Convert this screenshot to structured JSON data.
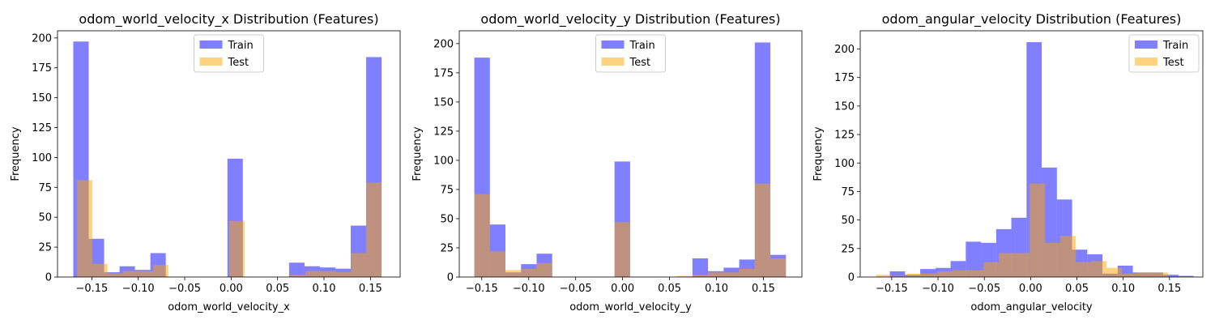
{
  "colors": {
    "train": "#0000ff",
    "test": "#ffa500",
    "train_alpha": 0.5,
    "test_alpha": 0.5
  },
  "chart_data": [
    {
      "type": "bar",
      "title": "odom_world_velocity_x Distribution (Features)",
      "xlabel": "odom_world_velocity_x",
      "ylabel": "Frequency",
      "xlim": [
        -0.187,
        0.182
      ],
      "ylim": [
        0,
        206
      ],
      "xticks": [
        -0.15,
        -0.1,
        -0.05,
        0.0,
        0.05,
        0.1,
        0.15
      ],
      "xtick_labels": [
        "−0.15",
        "−0.10",
        "−0.05",
        "0.00",
        "0.05",
        "0.10",
        "0.15"
      ],
      "yticks": [
        0,
        25,
        50,
        75,
        100,
        125,
        150,
        175,
        200
      ],
      "ytick_labels": [
        "0",
        "25",
        "50",
        "75",
        "100",
        "125",
        "150",
        "175",
        "200"
      ],
      "legend": {
        "position": "upper center",
        "entries": [
          "Train",
          "Test"
        ]
      },
      "series": [
        {
          "name": "Train",
          "bin_edges": [
            -0.17,
            -0.1534,
            -0.1368,
            -0.1202,
            -0.1036,
            -0.087,
            -0.0704,
            -0.0538,
            -0.0372,
            -0.0206,
            -0.004,
            0.0126,
            0.0292,
            0.0458,
            0.0624,
            0.079,
            0.0956,
            0.1122,
            0.1288,
            0.1454,
            0.162
          ],
          "values": [
            197,
            32,
            4,
            9,
            6,
            20,
            0,
            0,
            0,
            0,
            99,
            0,
            0,
            0,
            12,
            9,
            8,
            7,
            43,
            184
          ]
        },
        {
          "name": "Test",
          "bin_edges": [
            -0.166,
            -0.1496,
            -0.1332,
            -0.1168,
            -0.1004,
            -0.084,
            -0.0676,
            -0.0512,
            -0.0348,
            -0.0184,
            -0.002,
            0.0144,
            0.0308,
            0.0472,
            0.0636,
            0.08,
            0.0964,
            0.1128,
            0.1292,
            0.1456,
            0.162
          ],
          "values": [
            81,
            11,
            3,
            5,
            5,
            10,
            0,
            0,
            0,
            0,
            47,
            0,
            0,
            0,
            2,
            5,
            5,
            4,
            20,
            79
          ]
        }
      ]
    },
    {
      "type": "bar",
      "title": "odom_world_velocity_y Distribution (Features)",
      "xlabel": "odom_world_velocity_y",
      "ylabel": "Frequency",
      "xlim": [
        -0.174,
        0.191
      ],
      "ylim": [
        0,
        211
      ],
      "xticks": [
        -0.15,
        -0.1,
        -0.05,
        0.0,
        0.05,
        0.1,
        0.15
      ],
      "xtick_labels": [
        "−0.15",
        "−0.10",
        "−0.05",
        "0.00",
        "0.05",
        "0.10",
        "0.15"
      ],
      "yticks": [
        0,
        25,
        50,
        75,
        100,
        125,
        150,
        175,
        200
      ],
      "ytick_labels": [
        "0",
        "25",
        "50",
        "75",
        "100",
        "125",
        "150",
        "175",
        "200"
      ],
      "legend": {
        "position": "upper center",
        "entries": [
          "Train",
          "Test"
        ]
      },
      "series": [
        {
          "name": "Train",
          "bin_edges": [
            -0.158,
            -0.1414,
            -0.1248,
            -0.1082,
            -0.0916,
            -0.075,
            -0.0584,
            -0.0418,
            -0.0252,
            -0.0086,
            0.008,
            0.0246,
            0.0412,
            0.0578,
            0.0744,
            0.091,
            0.1076,
            0.1242,
            0.1408,
            0.1574,
            0.174
          ],
          "values": [
            188,
            45,
            4,
            11,
            20,
            0,
            0,
            0,
            0,
            99,
            0,
            0,
            0,
            0,
            16,
            5,
            8,
            15,
            201,
            19
          ]
        },
        {
          "name": "Test",
          "bin_edges": [
            -0.158,
            -0.1414,
            -0.1248,
            -0.1082,
            -0.0916,
            -0.075,
            -0.0584,
            -0.0418,
            -0.0252,
            -0.0086,
            0.008,
            0.0246,
            0.0412,
            0.0578,
            0.0744,
            0.091,
            0.1076,
            0.1242,
            0.1408,
            0.1574,
            0.174
          ],
          "values": [
            71,
            22,
            6,
            7,
            12,
            0,
            0,
            0,
            0,
            47,
            0,
            0,
            0,
            1,
            2,
            4,
            4,
            7,
            80,
            16
          ]
        }
      ]
    },
    {
      "type": "bar",
      "title": "odom_angular_velocity Distribution (Features)",
      "xlabel": "odom_angular_velocity",
      "ylabel": "Frequency",
      "xlim": [
        -0.184,
        0.186
      ],
      "ylim": [
        0,
        216
      ],
      "xticks": [
        -0.15,
        -0.1,
        -0.05,
        0.0,
        0.05,
        0.1,
        0.15
      ],
      "xtick_labels": [
        "−0.15",
        "−0.10",
        "−0.05",
        "0.00",
        "0.05",
        "0.10",
        "0.15"
      ],
      "yticks": [
        0,
        25,
        50,
        75,
        100,
        125,
        150,
        175,
        200
      ],
      "ytick_labels": [
        "0",
        "25",
        "50",
        "75",
        "100",
        "125",
        "150",
        "175",
        "200"
      ],
      "legend": {
        "position": "upper right",
        "entries": [
          "Train",
          "Test"
        ]
      },
      "series": [
        {
          "name": "Train",
          "bin_edges": [
            -0.152,
            -0.1356,
            -0.1192,
            -0.1028,
            -0.0864,
            -0.07,
            -0.0536,
            -0.0372,
            -0.0208,
            -0.0044,
            0.012,
            0.0284,
            0.0448,
            0.0612,
            0.0776,
            0.094,
            0.1104,
            0.1268,
            0.1432,
            0.1596,
            0.176
          ],
          "values": [
            5,
            2,
            7,
            8,
            14,
            31,
            30,
            42,
            52,
            206,
            96,
            68,
            24,
            20,
            3,
            10,
            4,
            4,
            2,
            1
          ]
        },
        {
          "name": "Test",
          "bin_edges": [
            -0.167,
            -0.1504,
            -0.1338,
            -0.1172,
            -0.1006,
            -0.084,
            -0.0674,
            -0.0508,
            -0.0342,
            -0.0176,
            -0.001,
            0.0156,
            0.0322,
            0.0488,
            0.0654,
            0.082,
            0.0986,
            0.1152,
            0.1318,
            0.1484,
            0.165
          ],
          "values": [
            2,
            1,
            3,
            3,
            5,
            6,
            6,
            13,
            21,
            21,
            82,
            30,
            36,
            13,
            14,
            8,
            3,
            4,
            4,
            0
          ]
        }
      ]
    }
  ]
}
